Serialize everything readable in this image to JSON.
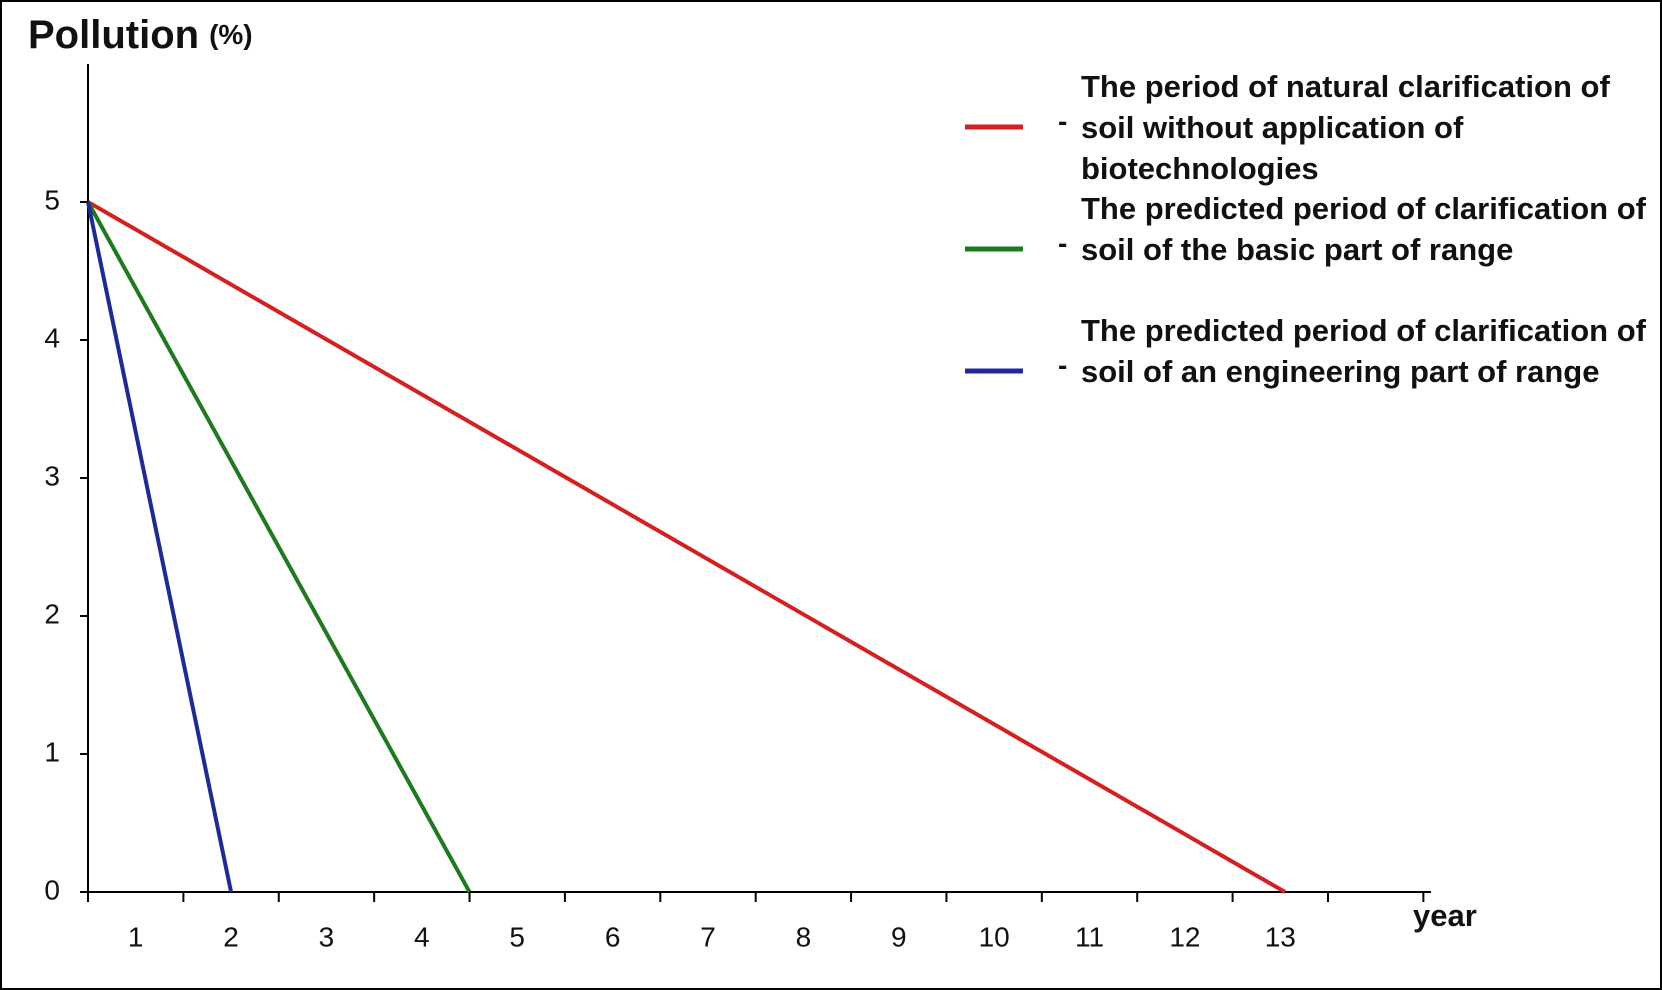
{
  "chart_data": {
    "type": "line",
    "title": "Pollution",
    "y_unit": "(%)",
    "x_label": "year",
    "legend_separator": "-",
    "xlim": [
      0,
      14.08
    ],
    "ylim": [
      0,
      6
    ],
    "yticks": [
      0,
      1,
      2,
      3,
      4,
      5
    ],
    "xtick_marks": [
      0,
      1,
      2,
      3,
      4,
      5,
      6,
      7,
      8,
      9,
      10,
      11,
      12,
      13,
      14
    ],
    "xticks": [
      {
        "value": 0.5,
        "label": "1"
      },
      {
        "value": 1.5,
        "label": "2"
      },
      {
        "value": 2.5,
        "label": "3"
      },
      {
        "value": 3.5,
        "label": "4"
      },
      {
        "value": 4.5,
        "label": "5"
      },
      {
        "value": 5.5,
        "label": "6"
      },
      {
        "value": 6.5,
        "label": "7"
      },
      {
        "value": 7.5,
        "label": "8"
      },
      {
        "value": 8.5,
        "label": "9"
      },
      {
        "value": 9.5,
        "label": "10"
      },
      {
        "value": 10.5,
        "label": "11"
      },
      {
        "value": 11.5,
        "label": "12"
      },
      {
        "value": 12.5,
        "label": "13"
      }
    ],
    "legend": "upper right",
    "series": [
      {
        "name": "The period of natural clarification of soil without application of biotechnologies",
        "color": "#d42020",
        "x": [
          0,
          12.55
        ],
        "values": [
          5,
          0
        ]
      },
      {
        "name": "The predicted period of clarification of soil of the basic part of range",
        "color": "#1e7a1e",
        "x": [
          0,
          4.0
        ],
        "values": [
          5,
          0
        ]
      },
      {
        "name": "The predicted period of clarification of soil of an engineering part of range",
        "color": "#1c2a9a",
        "x": [
          0,
          1.5
        ],
        "values": [
          5,
          0
        ]
      }
    ]
  }
}
